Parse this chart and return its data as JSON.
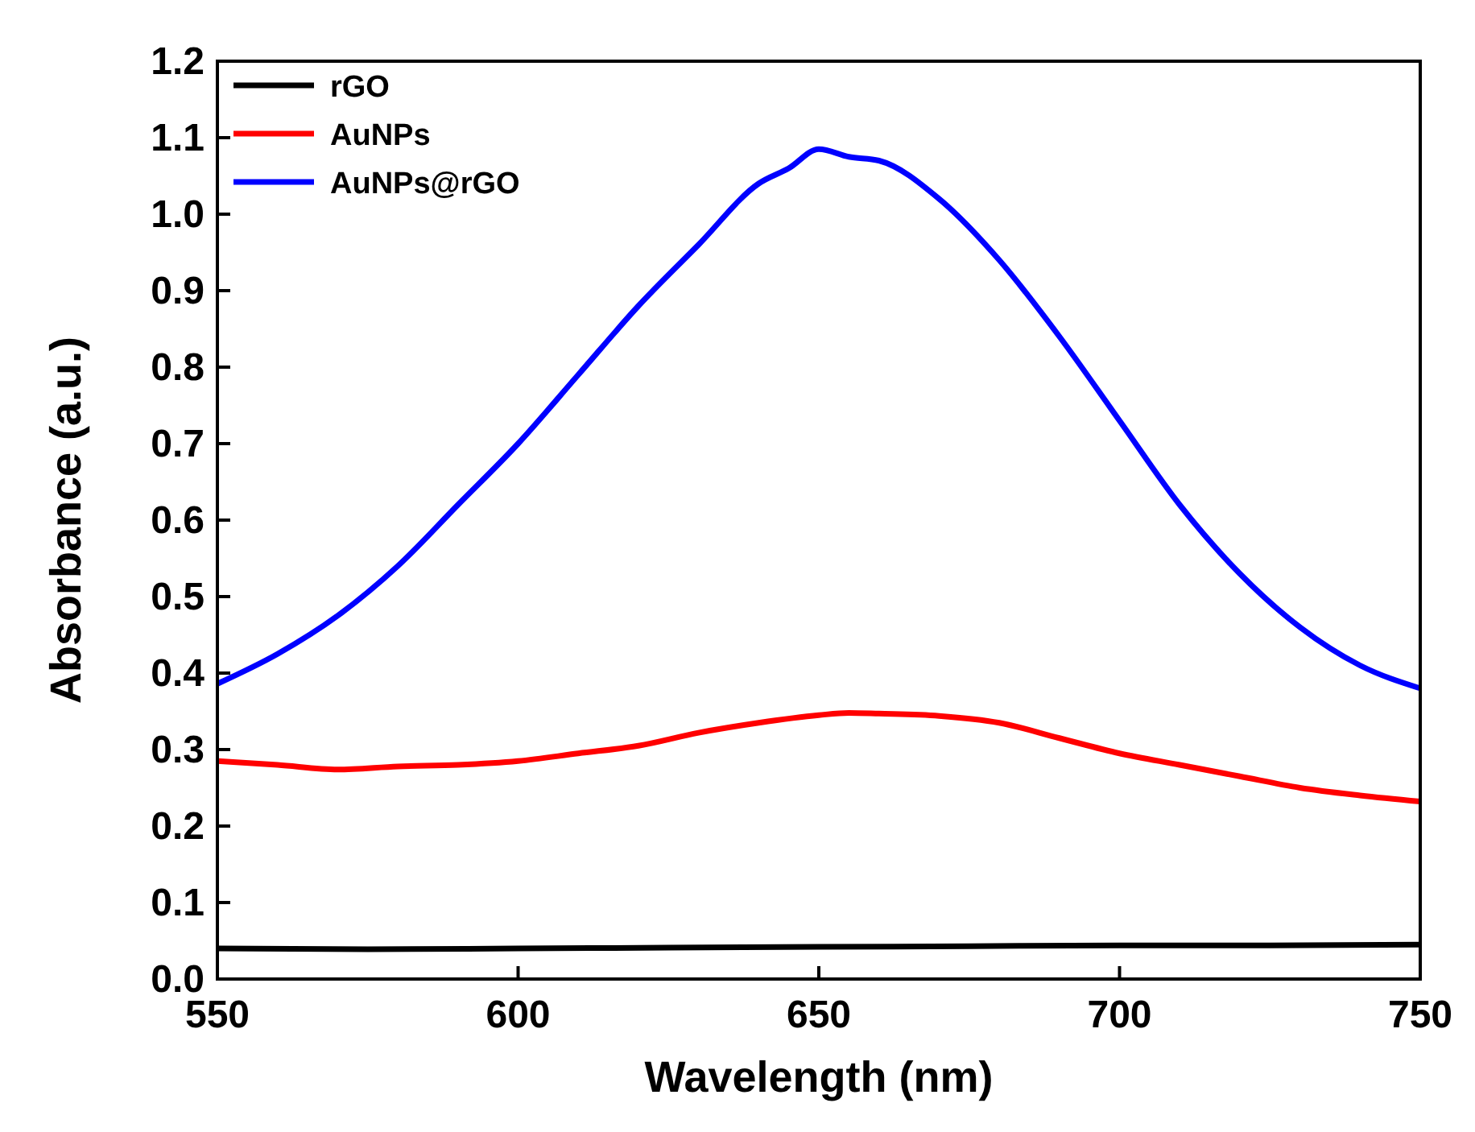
{
  "chart_data": {
    "type": "line",
    "xlabel": "Wavelength (nm)",
    "ylabel": "Absorbance (a.u.)",
    "xlim": [
      550,
      750
    ],
    "xticks": [
      550,
      600,
      650,
      700,
      750
    ],
    "ylim": [
      0,
      1.2
    ],
    "yticks": [
      {
        "value": 0,
        "label": "0.0"
      },
      0.1,
      0.2,
      0.3,
      0.4,
      0.5,
      0.6,
      0.7,
      0.8,
      0.9,
      {
        "value": 1,
        "label": "1.0"
      },
      1.1,
      1.2
    ],
    "legend": "top left",
    "grid": false,
    "line_style": "solid",
    "series": [
      {
        "name": "rGO",
        "color": "#000000",
        "x": [
          550,
          575,
          600,
          625,
          650,
          675,
          700,
          725,
          750
        ],
        "values": [
          0.04,
          0.039,
          0.04,
          0.041,
          0.042,
          0.043,
          0.044,
          0.044,
          0.045
        ]
      },
      {
        "name": "AuNPs",
        "color": "#ff0000",
        "x": [
          550,
          560,
          570,
          580,
          590,
          600,
          610,
          620,
          630,
          640,
          650,
          655,
          660,
          670,
          680,
          690,
          700,
          710,
          720,
          730,
          740,
          750
        ],
        "values": [
          0.285,
          0.28,
          0.274,
          0.278,
          0.28,
          0.285,
          0.295,
          0.305,
          0.322,
          0.335,
          0.345,
          0.348,
          0.347,
          0.344,
          0.335,
          0.315,
          0.295,
          0.28,
          0.265,
          0.25,
          0.24,
          0.232
        ]
      },
      {
        "name": "AuNPs@rGO",
        "color": "#0000ff",
        "x": [
          550,
          560,
          570,
          580,
          590,
          600,
          610,
          620,
          630,
          640,
          645,
          650,
          655,
          660,
          670,
          680,
          690,
          700,
          710,
          720,
          730,
          740,
          750
        ],
        "values": [
          0.386,
          0.425,
          0.475,
          0.54,
          0.62,
          0.7,
          0.79,
          0.88,
          0.96,
          1.04,
          1.06,
          1.085,
          1.075,
          1.07,
          1.02,
          0.94,
          0.84,
          0.73,
          0.62,
          0.53,
          0.46,
          0.41,
          0.38
        ]
      }
    ]
  }
}
